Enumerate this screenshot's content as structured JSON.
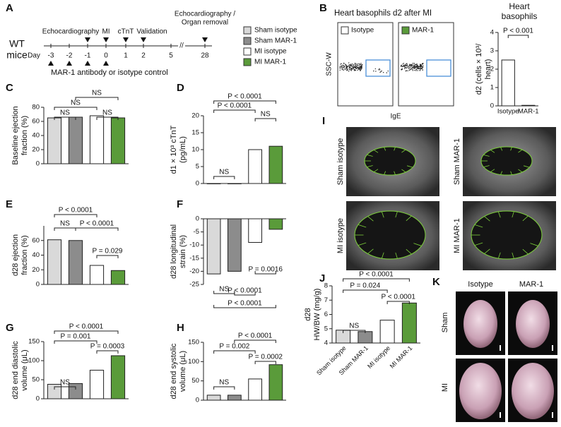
{
  "timeline": {
    "panel": "A",
    "subject": [
      "WT",
      "mice"
    ],
    "day_label": "Day",
    "days": [
      -3,
      -2,
      -1,
      0,
      1,
      2,
      5,
      28
    ],
    "events": [
      "Echocardiography",
      "MI",
      "cTnT",
      "Validation"
    ],
    "final_event": [
      "Echocardiography /",
      "Organ removal"
    ],
    "treatment": "MAR-1 antibody or isotype control",
    "legend": [
      {
        "name": "Sham isotype",
        "color": "#d9d9d9"
      },
      {
        "name": "Sham MAR-1",
        "color": "#8c8c8c"
      },
      {
        "name": "MI isotype",
        "color": "#ffffff"
      },
      {
        "name": "MI MAR-1",
        "color": "#5a9b3a"
      }
    ]
  },
  "flow": {
    "panel": "B",
    "title": "Heart basophils d2 after MI",
    "gates": [
      {
        "name": "Isotype",
        "color": "#ffffff"
      },
      {
        "name": "MAR-1",
        "color": "#5a9b3a"
      }
    ],
    "ylabel": "SSC-W",
    "xlabel": "IgE"
  },
  "chart_data": [
    {
      "type": "bar",
      "title": [
        "Heart",
        "basophils"
      ],
      "categories": [
        "Isotype",
        "MAR-1"
      ],
      "values": [
        2.5,
        0.03
      ],
      "colors": [
        "#ffffff",
        "#ffffff"
      ],
      "ylim": [
        0,
        4
      ],
      "yticks": [
        0,
        1,
        2,
        3,
        4
      ],
      "ylabel": [
        "d2 (cells × 10³/",
        "heart)"
      ],
      "annotations": [
        "P < 0.001"
      ]
    },
    {
      "type": "bar",
      "panel": "C",
      "categories": [
        null,
        null,
        null,
        null
      ],
      "values": [
        65,
        66,
        68,
        65
      ],
      "colors": [
        "#d9d9d9",
        "#8c8c8c",
        "#ffffff",
        "#5a9b3a"
      ],
      "ylim": [
        0,
        80
      ],
      "yticks": [
        0,
        20,
        40,
        60,
        80
      ],
      "ylabel": [
        "Baseline ejection",
        "fraction (%)"
      ],
      "annotations": [
        "NS",
        "NS",
        "NS",
        "NS"
      ]
    },
    {
      "type": "bar",
      "panel": "D",
      "categories": [
        null,
        null,
        null,
        null
      ],
      "values": [
        0,
        0,
        10,
        11
      ],
      "colors": [
        "#d9d9d9",
        "#8c8c8c",
        "#ffffff",
        "#5a9b3a"
      ],
      "ylim": [
        0,
        20
      ],
      "yticks": [
        0,
        5,
        10,
        15,
        20
      ],
      "ylabel": [
        "d1 × 10³ cTnT",
        "(pg/mL)"
      ],
      "annotations": [
        "P < 0.0001",
        "P < 0.0001",
        "NS",
        "NS"
      ]
    },
    {
      "type": "bar",
      "panel": "E",
      "categories": [
        null,
        null,
        null,
        null
      ],
      "values": [
        61,
        60,
        26,
        19
      ],
      "colors": [
        "#d9d9d9",
        "#8c8c8c",
        "#ffffff",
        "#5a9b3a"
      ],
      "ylim": [
        0,
        80
      ],
      "yticks": [
        0,
        20,
        40,
        60
      ],
      "ylabel": [
        "d28 ejection",
        "fraction (%)"
      ],
      "annotations": [
        "P < 0.0001",
        "NS",
        "P < 0.0001",
        "P = 0.029"
      ]
    },
    {
      "type": "bar",
      "panel": "F",
      "categories": [
        null,
        null,
        null,
        null
      ],
      "values": [
        -21,
        -20,
        -9,
        -4
      ],
      "colors": [
        "#d9d9d9",
        "#8c8c8c",
        "#ffffff",
        "#5a9b3a"
      ],
      "ylim": [
        -25,
        0
      ],
      "yticks": [
        0,
        -5,
        -10,
        -15,
        -20,
        -25
      ],
      "ylabel": [
        "d28 longitudinal",
        "strain (%)"
      ],
      "annotations": [
        "NS",
        "P = 0.0016",
        "P < 0.0001",
        "P < 0.0001"
      ]
    },
    {
      "type": "bar",
      "panel": "G",
      "categories": [
        null,
        null,
        null,
        null
      ],
      "values": [
        38,
        40,
        75,
        113
      ],
      "colors": [
        "#d9d9d9",
        "#8c8c8c",
        "#ffffff",
        "#5a9b3a"
      ],
      "ylim": [
        0,
        150
      ],
      "yticks": [
        0,
        50,
        100,
        150
      ],
      "ylabel": [
        "d28 end diastolic",
        "volume (μL)"
      ],
      "annotations": [
        "P < 0.0001",
        "P = 0.001",
        "P = 0.0003",
        "NS"
      ]
    },
    {
      "type": "bar",
      "panel": "H",
      "categories": [
        null,
        null,
        null,
        null
      ],
      "values": [
        13,
        13,
        55,
        92
      ],
      "colors": [
        "#d9d9d9",
        "#8c8c8c",
        "#ffffff",
        "#5a9b3a"
      ],
      "ylim": [
        0,
        150
      ],
      "yticks": [
        0,
        50,
        100,
        150
      ],
      "ylabel": [
        "d28 end systolic",
        "volume (μL)"
      ],
      "annotations": [
        "P < 0.0001",
        "P = 0.002",
        "P = 0.0002",
        "NS"
      ]
    },
    {
      "type": "bar",
      "panel": "J",
      "categories": [
        "Sham isotype",
        "Sham MAR-1",
        "MI isotype",
        "MI MAR-1"
      ],
      "values": [
        4.9,
        4.8,
        5.6,
        6.8
      ],
      "colors": [
        "#d9d9d9",
        "#8c8c8c",
        "#ffffff",
        "#5a9b3a"
      ],
      "ylim": [
        4,
        8
      ],
      "yticks": [
        4,
        5,
        6,
        7,
        8
      ],
      "ylabel": [
        "d28",
        "HW/BW (mg/g)"
      ],
      "annotations": [
        "P < 0.0001",
        "P = 0.024",
        "P < 0.0001",
        "NS"
      ]
    }
  ],
  "echo": {
    "panel": "I",
    "labels": [
      "Sham isotype",
      "Sham MAR-1",
      "MI isotype",
      "MI MAR-1"
    ]
  },
  "photos": {
    "panel": "K",
    "columns": [
      "Isotype",
      "MAR-1"
    ],
    "rows": [
      "Sham",
      "MI"
    ]
  }
}
